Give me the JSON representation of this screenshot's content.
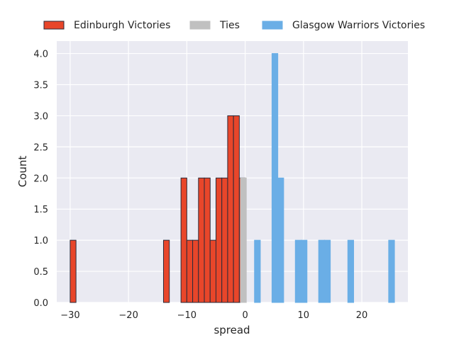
{
  "chart_data": {
    "type": "bar",
    "title": "",
    "xlabel": "spread",
    "ylabel": "Count",
    "xlim": [
      -32.3,
      27.9
    ],
    "ylim": [
      0,
      4.2
    ],
    "bin_width": 1,
    "grid": true,
    "legend_position": "top",
    "x_ticks": [
      "−30",
      "−20",
      "−10",
      "0",
      "10",
      "20"
    ],
    "x_tick_values": [
      -30,
      -20,
      -10,
      0,
      10,
      20
    ],
    "y_ticks": [
      "0.0",
      "0.5",
      "1.0",
      "1.5",
      "2.0",
      "2.5",
      "3.0",
      "3.5",
      "4.0"
    ],
    "y_tick_values": [
      0,
      0.5,
      1,
      1.5,
      2,
      2.5,
      3,
      3.5,
      4
    ],
    "series": [
      {
        "name": "Edinburgh Victories",
        "color": "#e8462a",
        "edge": "#2b2b3a",
        "bins": [
          {
            "start": -30,
            "count": 1
          },
          {
            "start": -14,
            "count": 1
          },
          {
            "start": -11,
            "count": 2
          },
          {
            "start": -10,
            "count": 1
          },
          {
            "start": -9,
            "count": 1
          },
          {
            "start": -8,
            "count": 2
          },
          {
            "start": -7,
            "count": 2
          },
          {
            "start": -6,
            "count": 1
          },
          {
            "start": -5,
            "count": 2
          },
          {
            "start": -4,
            "count": 2
          },
          {
            "start": -3,
            "count": 3
          },
          {
            "start": -2,
            "count": 3
          },
          {
            "start": -1,
            "count": 2
          }
        ]
      },
      {
        "name": "Ties",
        "color": "#c0c0c0",
        "edge": "#c0c0c0",
        "bins": [
          {
            "start": -0.8,
            "count": 2
          }
        ]
      },
      {
        "name": "Glasgow Warriors Victories",
        "color": "#6aaee6",
        "edge": "#6aaee6",
        "bins": [
          {
            "start": 1.6,
            "count": 1
          },
          {
            "start": 4.6,
            "count": 4
          },
          {
            "start": 5.6,
            "count": 2
          },
          {
            "start": 8.6,
            "count": 1
          },
          {
            "start": 9.6,
            "count": 1
          },
          {
            "start": 12.6,
            "count": 1
          },
          {
            "start": 13.6,
            "count": 1
          },
          {
            "start": 17.6,
            "count": 1
          },
          {
            "start": 24.6,
            "count": 1
          }
        ]
      }
    ]
  }
}
